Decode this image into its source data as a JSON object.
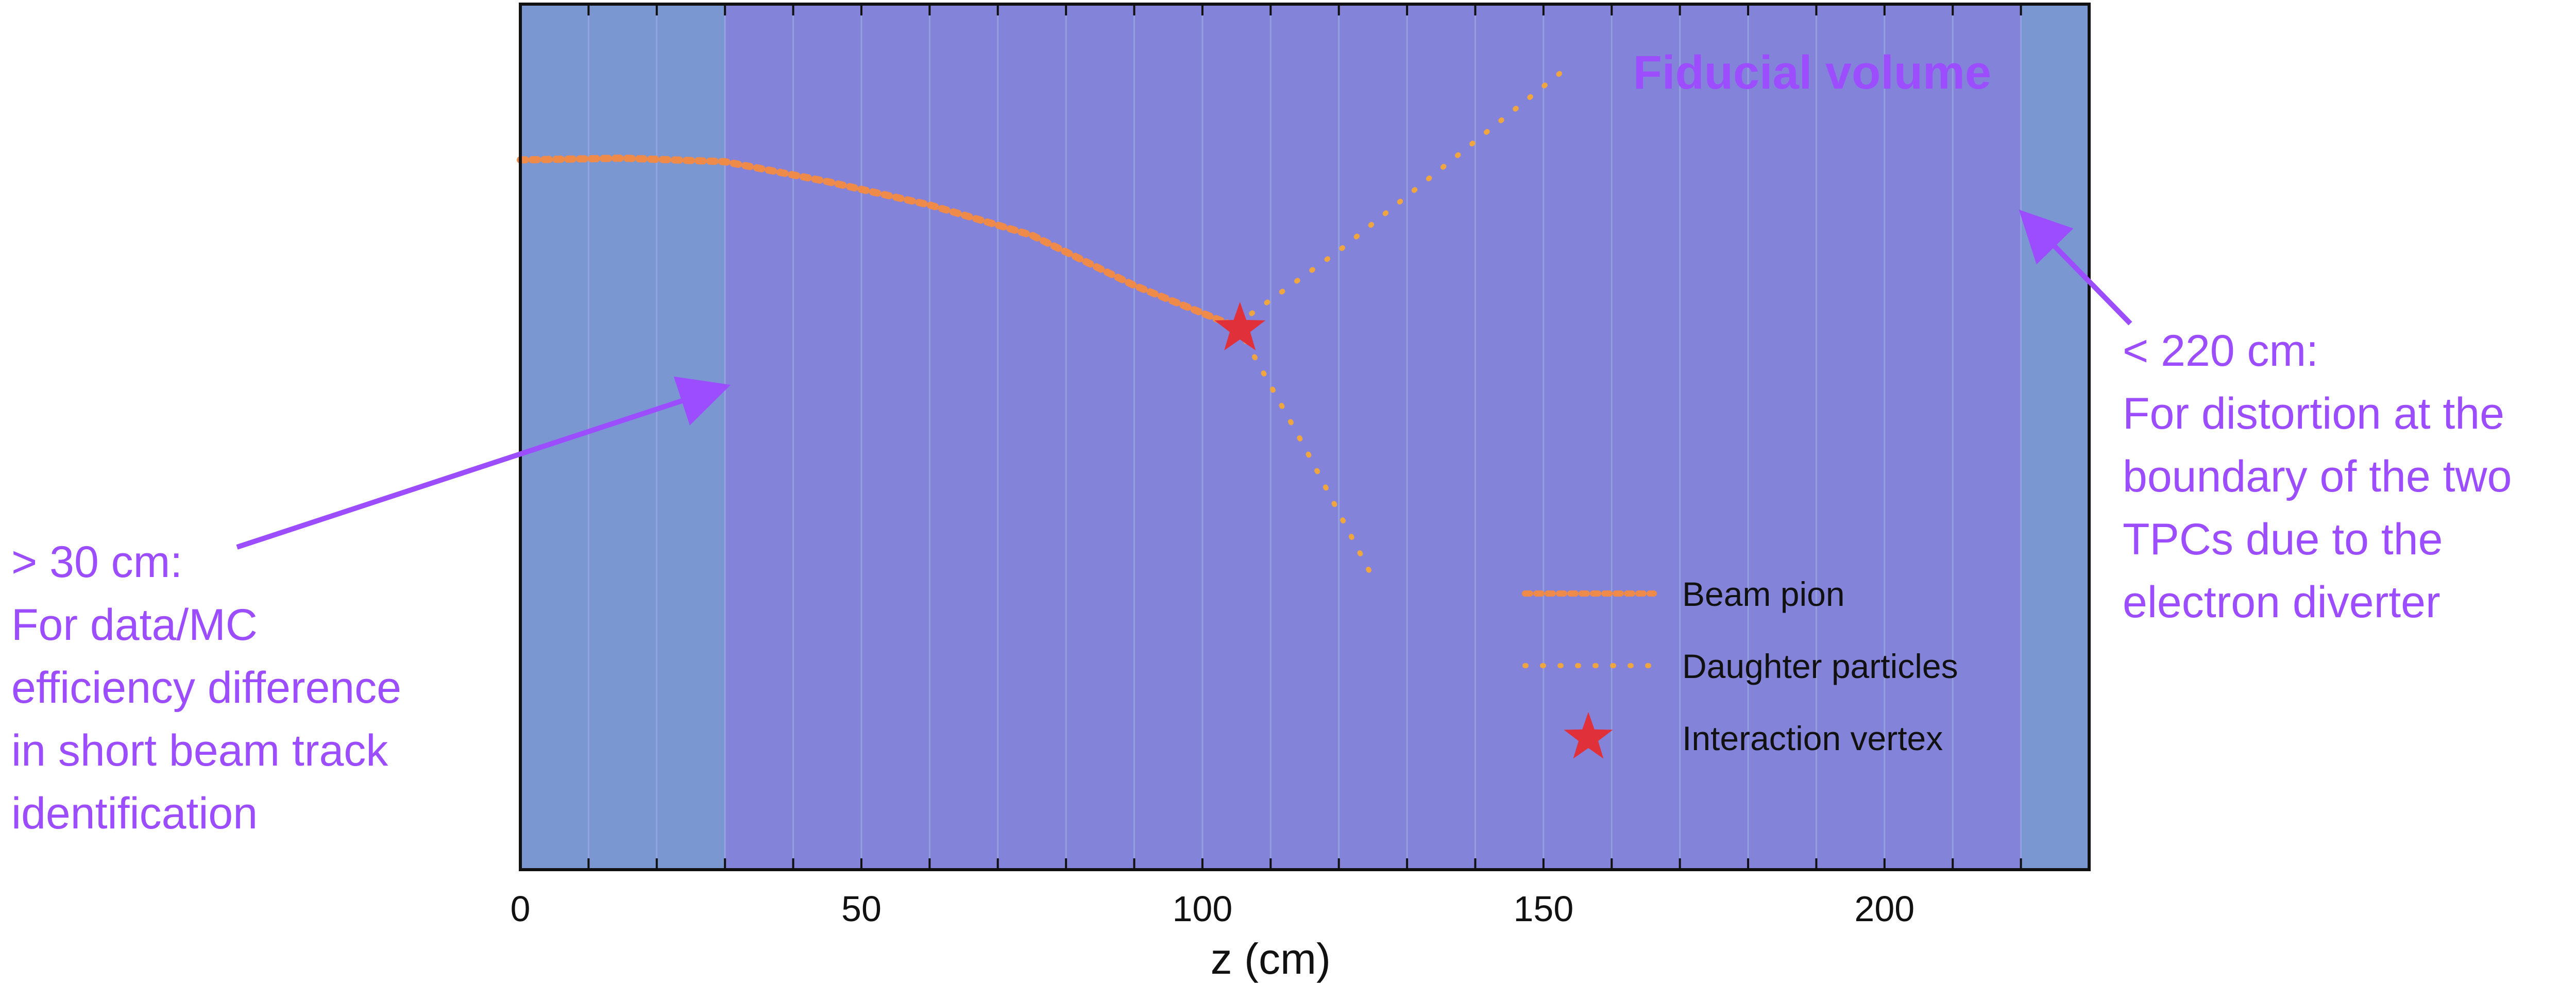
{
  "colors": {
    "excluded_region": "#7a97d2",
    "fiducial_region": "#8383da",
    "grid_line": "#9aa6e0",
    "beam_track": "#ee8a4a",
    "daughter_track": "#f0a640",
    "vertex": "#e0303a",
    "annotation": "#9b4dff",
    "frame": "#111111"
  },
  "axis": {
    "xlabel": "z (cm)",
    "xlim": [
      0,
      230
    ],
    "ylim": [
      0,
      100
    ],
    "ticks": [
      0,
      50,
      100,
      150,
      200
    ],
    "tick_labels": [
      "0",
      "50",
      "100",
      "150",
      "200"
    ],
    "gridlines": [
      10,
      20,
      30,
      40,
      50,
      60,
      70,
      80,
      90,
      100,
      110,
      120,
      130,
      140,
      150,
      160,
      170,
      180,
      190,
      200,
      210,
      220
    ]
  },
  "regions": {
    "fiducial_start_cm": 30,
    "fiducial_end_cm": 220,
    "title": "Fiducial volume"
  },
  "tracks": {
    "beam": [
      [
        0,
        82
      ],
      [
        15,
        82.2
      ],
      [
        30,
        81.8
      ],
      [
        45,
        79.5
      ],
      [
        60,
        76.8
      ],
      [
        75,
        73.3
      ],
      [
        90,
        67.5
      ],
      [
        105,
        62.7
      ]
    ],
    "daughter_upper": [
      [
        105,
        63
      ],
      [
        120,
        71.5
      ],
      [
        135,
        81
      ],
      [
        150,
        90.5
      ],
      [
        154,
        93
      ]
    ],
    "daughter_lower": [
      [
        105,
        63
      ],
      [
        115,
        48.8
      ],
      [
        125,
        33.7
      ]
    ],
    "vertex": [
      105.5,
      62.5
    ]
  },
  "legend": {
    "items": [
      {
        "label": "Beam pion",
        "style": "beam"
      },
      {
        "label": "Daughter particles",
        "style": "daughter"
      },
      {
        "label": "Interaction vertex",
        "style": "vertex"
      }
    ]
  },
  "annotations": {
    "left": {
      "lines": [
        "> 30 cm:",
        "For data/MC",
        "efficiency difference",
        "in short beam track",
        "identification"
      ],
      "arrow_to_cm": [
        30,
        56
      ]
    },
    "right": {
      "lines": [
        "< 220 cm:",
        "For distortion at the",
        "boundary of the two",
        "TPCs due to the",
        "electron diverter"
      ],
      "arrow_to_cm": [
        220,
        76
      ]
    }
  }
}
